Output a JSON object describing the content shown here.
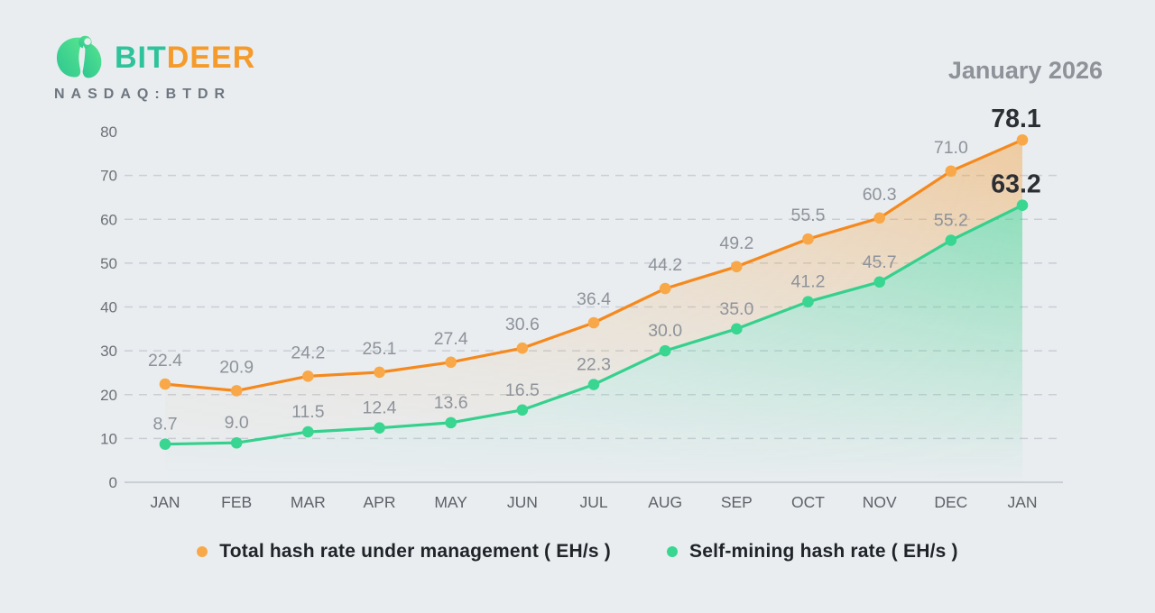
{
  "header": {
    "brand_bit": "BIT",
    "brand_deer": "DEER",
    "ticker": "NASDAQ:BTDR",
    "date_label": "January 2026"
  },
  "colors": {
    "background": "#E9EDF0",
    "grid": "#C9CED5",
    "axis_baseline": "#BFC5CC",
    "tick_text": "#6C7177",
    "month_text": "#5D6268",
    "value_label": "#8E939B",
    "final_value_label": "#2B2F34",
    "logo_green_start": "#2FC690",
    "logo_green_end": "#55E48F"
  },
  "chart_data": {
    "type": "line",
    "title": "January 2026",
    "xlabel": "",
    "ylabel": "",
    "ylim": [
      0,
      80
    ],
    "yticks": [
      0,
      10,
      20,
      30,
      40,
      50,
      60,
      70,
      80
    ],
    "grid": "horizontal dashed (10-70), solid baseline at 0",
    "legend_position": "bottom",
    "categories": [
      "JAN",
      "FEB",
      "MAR",
      "APR",
      "MAY",
      "JUN",
      "JUL",
      "AUG",
      "SEP",
      "OCT",
      "NOV",
      "DEC",
      "JAN"
    ],
    "series": [
      {
        "name": "Total hash rate under management ( EH/s )",
        "line_color": "#F5891D",
        "dot_color": "#F8A848",
        "values": [
          22.4,
          20.9,
          24.2,
          25.1,
          27.4,
          30.6,
          36.4,
          44.2,
          49.2,
          55.5,
          60.3,
          71.0,
          78.1
        ],
        "labels": [
          "22.4",
          "20.9",
          "24.2",
          "25.1",
          "27.4",
          "30.6",
          "36.4",
          "44.2",
          "49.2",
          "55.5",
          "60.3",
          "71.0",
          "78.1"
        ],
        "fill_rgb": "246,154,45"
      },
      {
        "name": "Self-mining hash rate ( EH/s )",
        "line_color": "#35D08D",
        "dot_color": "#38D690",
        "values": [
          8.7,
          9.0,
          11.5,
          12.4,
          13.6,
          16.5,
          22.3,
          30.0,
          35.0,
          41.2,
          45.7,
          55.2,
          63.2
        ],
        "labels": [
          "8.7",
          "9.0",
          "11.5",
          "12.4",
          "13.6",
          "16.5",
          "22.3",
          "30.0",
          "35.0",
          "41.2",
          "45.7",
          "55.2",
          "63.2"
        ],
        "fill_rgb": "62,209,140"
      }
    ]
  }
}
